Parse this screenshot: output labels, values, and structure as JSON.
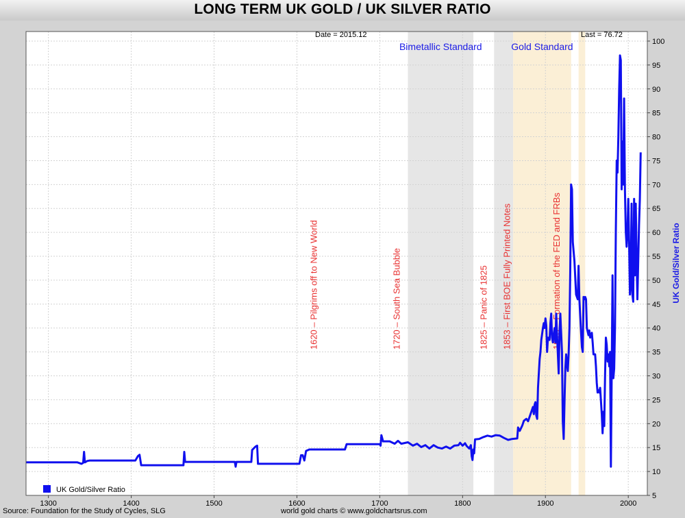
{
  "title": "LONG TERM UK GOLD / UK SILVER RATIO",
  "header_date": "Date = 2015.12",
  "header_last": "Last = 76.72",
  "footer_source": "Source: Foundation for the Study of Cycles, SLG",
  "footer_site": "world gold charts © www.goldchartsrus.com",
  "colors": {
    "line": "#1010ee",
    "shade_grey": "#e6e6e6",
    "shade_tan": "#fbefd6",
    "annotation": "#e83030",
    "region_label": "#1a1ae6"
  },
  "chart_data": {
    "type": "line",
    "title": "LONG TERM UK GOLD / UK SILVER RATIO",
    "xlim": [
      1273,
      2023
    ],
    "ylim": [
      5,
      102
    ],
    "x_ticks": [
      1300,
      1400,
      1500,
      1600,
      1700,
      1800,
      1900,
      2000
    ],
    "y_ticks": [
      5,
      10,
      15,
      20,
      25,
      30,
      35,
      40,
      45,
      50,
      55,
      60,
      65,
      70,
      75,
      80,
      85,
      90,
      95,
      100
    ],
    "ylabel": "UK Gold/Silver Ratio",
    "grid": true,
    "legend": {
      "position": "bottom-left",
      "entries": [
        "UK Gold/Silver Ratio"
      ]
    },
    "regions": [
      {
        "from": 1734,
        "to": 1813,
        "style": "grey",
        "label": "Bimetallic Standard"
      },
      {
        "from": 1838,
        "to": 1861,
        "style": "grey",
        "label": ""
      },
      {
        "from": 1861,
        "to": 1931,
        "style": "tan",
        "label": "Gold Standard"
      },
      {
        "from": 1940,
        "to": 1948,
        "style": "tan",
        "label": ""
      }
    ],
    "annotations": [
      {
        "x": 1620,
        "text": "1620 – Pilgrims off to New World"
      },
      {
        "x": 1720,
        "text": "1720 – South Sea Bubble"
      },
      {
        "x": 1825,
        "text": "1825 – Panic of 1825"
      },
      {
        "x": 1853,
        "text": "1853 – First BOE Fully Printed Notes"
      },
      {
        "x": 1913,
        "text": "1913 – Formation of the FED and FRBs"
      }
    ],
    "series": [
      {
        "name": "UK Gold/Silver Ratio",
        "points": [
          [
            1273,
            11.9
          ],
          [
            1335,
            11.9
          ],
          [
            1340,
            11.6
          ],
          [
            1342,
            11.8
          ],
          [
            1343,
            14.1
          ],
          [
            1344,
            11.9
          ],
          [
            1347,
            12.2
          ],
          [
            1350,
            12.3
          ],
          [
            1405,
            12.3
          ],
          [
            1408,
            13.2
          ],
          [
            1410,
            13.5
          ],
          [
            1412,
            11.3
          ],
          [
            1463,
            11.3
          ],
          [
            1464,
            14.1
          ],
          [
            1465,
            12.0
          ],
          [
            1525,
            12.0
          ],
          [
            1526,
            11.0
          ],
          [
            1527,
            12.0
          ],
          [
            1545,
            12.0
          ],
          [
            1546,
            14.5
          ],
          [
            1550,
            15.2
          ],
          [
            1552,
            15.4
          ],
          [
            1553,
            11.6
          ],
          [
            1603,
            11.6
          ],
          [
            1605,
            13.4
          ],
          [
            1607,
            13.4
          ],
          [
            1609,
            12.3
          ],
          [
            1611,
            14.3
          ],
          [
            1615,
            14.6
          ],
          [
            1658,
            14.6
          ],
          [
            1660,
            15.7
          ],
          [
            1700,
            15.7
          ],
          [
            1701,
            15.4
          ],
          [
            1702,
            17.6
          ],
          [
            1704,
            16.3
          ],
          [
            1712,
            16.3
          ],
          [
            1718,
            15.8
          ],
          [
            1722,
            16.4
          ],
          [
            1726,
            15.8
          ],
          [
            1734,
            16.1
          ],
          [
            1740,
            15.4
          ],
          [
            1745,
            15.8
          ],
          [
            1750,
            15.1
          ],
          [
            1755,
            15.5
          ],
          [
            1760,
            14.8
          ],
          [
            1765,
            15.5
          ],
          [
            1770,
            15.0
          ],
          [
            1775,
            14.8
          ],
          [
            1780,
            15.2
          ],
          [
            1785,
            14.8
          ],
          [
            1790,
            15.4
          ],
          [
            1795,
            15.5
          ],
          [
            1797,
            16.0
          ],
          [
            1800,
            15.4
          ],
          [
            1803,
            15.9
          ],
          [
            1805,
            15.3
          ],
          [
            1808,
            14.8
          ],
          [
            1810,
            15.5
          ],
          [
            1811,
            13.2
          ],
          [
            1812,
            12.4
          ],
          [
            1813,
            14.6
          ],
          [
            1814,
            13.8
          ],
          [
            1815,
            16.7
          ],
          [
            1820,
            16.8
          ],
          [
            1825,
            17.2
          ],
          [
            1830,
            17.5
          ],
          [
            1835,
            17.3
          ],
          [
            1840,
            17.6
          ],
          [
            1845,
            17.5
          ],
          [
            1850,
            17.0
          ],
          [
            1855,
            16.6
          ],
          [
            1860,
            16.8
          ],
          [
            1866,
            16.9
          ],
          [
            1867,
            19.2
          ],
          [
            1869,
            18.5
          ],
          [
            1872,
            19.6
          ],
          [
            1874,
            20.6
          ],
          [
            1877,
            21.0
          ],
          [
            1879,
            20.5
          ],
          [
            1882,
            22.0
          ],
          [
            1885,
            23.5
          ],
          [
            1886,
            22.0
          ],
          [
            1887,
            24.0
          ],
          [
            1888,
            24.5
          ],
          [
            1889,
            21.7
          ],
          [
            1890,
            21.0
          ],
          [
            1891,
            27.5
          ],
          [
            1893,
            33.5
          ],
          [
            1894,
            35.0
          ],
          [
            1895,
            37.5
          ],
          [
            1897,
            40.0
          ],
          [
            1898,
            41.0
          ],
          [
            1899,
            40.0
          ],
          [
            1900,
            42.0
          ],
          [
            1901,
            40.5
          ],
          [
            1902,
            35.0
          ],
          [
            1903,
            38.0
          ],
          [
            1905,
            37.5
          ],
          [
            1906,
            41.0
          ],
          [
            1907,
            43.0
          ],
          [
            1908,
            38.0
          ],
          [
            1909,
            37.0
          ],
          [
            1910,
            38.5
          ],
          [
            1911,
            40.0
          ],
          [
            1912,
            37.0
          ],
          [
            1913,
            43.0
          ],
          [
            1914,
            38.5
          ],
          [
            1916,
            30.5
          ],
          [
            1917,
            39.0
          ],
          [
            1918,
            43.0
          ],
          [
            1920,
            35.0
          ],
          [
            1921,
            20.5
          ],
          [
            1922,
            16.8
          ],
          [
            1923,
            24.5
          ],
          [
            1924,
            31.5
          ],
          [
            1925,
            34.5
          ],
          [
            1926,
            32.5
          ],
          [
            1927,
            31.0
          ],
          [
            1928,
            34.5
          ],
          [
            1929,
            40.0
          ],
          [
            1930,
            52.0
          ],
          [
            1931,
            70.0
          ],
          [
            1932,
            69.0
          ],
          [
            1933,
            58.0
          ],
          [
            1935,
            54.0
          ],
          [
            1937,
            47.0
          ],
          [
            1939,
            46.0
          ],
          [
            1940,
            53.0
          ],
          [
            1941,
            46.0
          ],
          [
            1943,
            39.0
          ],
          [
            1944,
            36.0
          ],
          [
            1945,
            35.0
          ],
          [
            1946,
            46.5
          ],
          [
            1947,
            46.0
          ],
          [
            1948,
            46.5
          ],
          [
            1949,
            46.0
          ],
          [
            1950,
            40.0
          ],
          [
            1952,
            38.5
          ],
          [
            1953,
            39.5
          ],
          [
            1954,
            38.0
          ],
          [
            1956,
            39.0
          ],
          [
            1957,
            37.0
          ],
          [
            1958,
            34.5
          ],
          [
            1960,
            34.5
          ],
          [
            1961,
            32.0
          ],
          [
            1962,
            28.5
          ],
          [
            1963,
            26.5
          ],
          [
            1964,
            27.0
          ],
          [
            1965,
            26.5
          ],
          [
            1966,
            27.5
          ],
          [
            1968,
            22.0
          ],
          [
            1969,
            18.0
          ],
          [
            1970,
            22.5
          ],
          [
            1971,
            19.5
          ],
          [
            1972,
            30.0
          ],
          [
            1973,
            38.0
          ],
          [
            1974,
            36.5
          ],
          [
            1975,
            33.0
          ],
          [
            1976,
            34.5
          ],
          [
            1977,
            32.0
          ],
          [
            1978,
            35.0
          ],
          [
            1979,
            11.0
          ],
          [
            1980,
            30.5
          ],
          [
            1981,
            51.0
          ],
          [
            1982,
            29.5
          ],
          [
            1983,
            31.5
          ],
          [
            1984,
            40.0
          ],
          [
            1985,
            60.0
          ],
          [
            1986,
            75.0
          ],
          [
            1987,
            72.5
          ],
          [
            1988,
            80.0
          ],
          [
            1989,
            90.0
          ],
          [
            1990,
            97.0
          ],
          [
            1991,
            96.0
          ],
          [
            1992,
            69.0
          ],
          [
            1993,
            79.0
          ],
          [
            1994,
            70.0
          ],
          [
            1995,
            88.0
          ],
          [
            1996,
            69.0
          ],
          [
            1997,
            60.0
          ],
          [
            1998,
            57.0
          ],
          [
            1999,
            60.0
          ],
          [
            2000,
            67.0
          ],
          [
            2001,
            58.0
          ],
          [
            2002,
            47.0
          ],
          [
            2003,
            49.0
          ],
          [
            2004,
            66.0
          ],
          [
            2005,
            47.0
          ],
          [
            2006,
            45.5
          ],
          [
            2007,
            67.0
          ],
          [
            2008,
            51.0
          ],
          [
            2009,
            66.0
          ],
          [
            2010,
            55.0
          ],
          [
            2011,
            46.0
          ],
          [
            2012,
            54.0
          ],
          [
            2013,
            61.5
          ],
          [
            2014,
            67.0
          ],
          [
            2015,
            76.72
          ]
        ]
      }
    ]
  }
}
